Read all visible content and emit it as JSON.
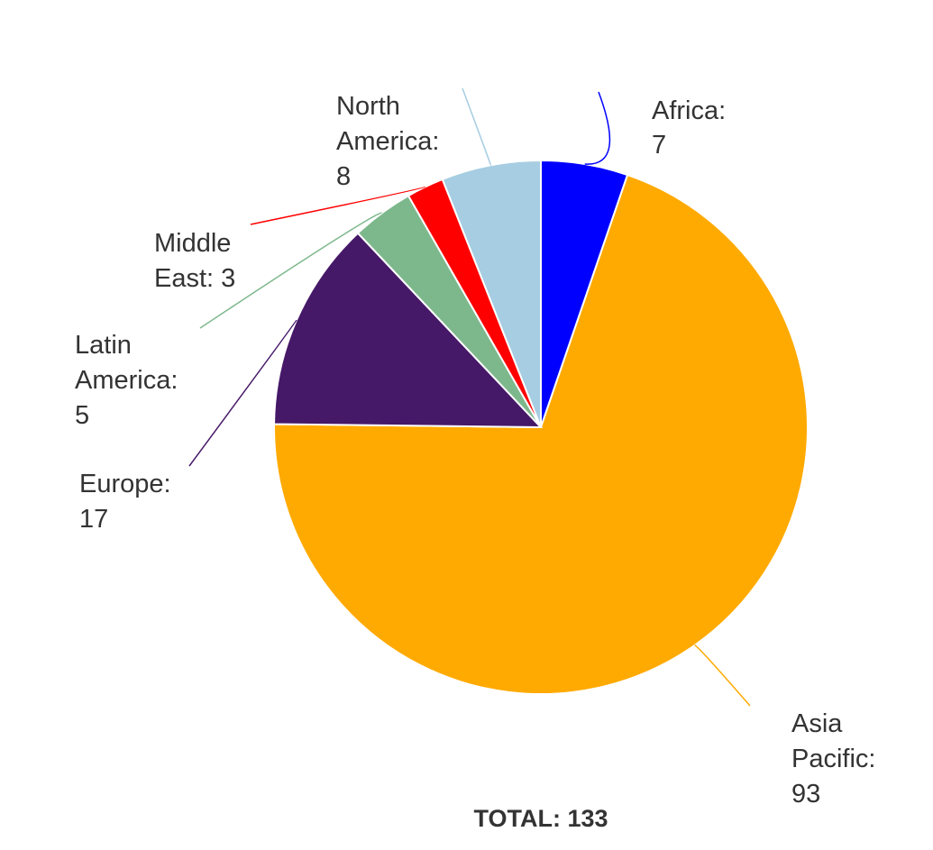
{
  "chart_data": {
    "type": "pie",
    "title": "",
    "slices": [
      {
        "label": "Africa",
        "value": 7,
        "color": "#0000FF"
      },
      {
        "label": "Asia Pacific",
        "value": 93,
        "color": "#FFAA00"
      },
      {
        "label": "Europe",
        "value": 17,
        "color": "#461868"
      },
      {
        "label": "Latin America",
        "value": 5,
        "color": "#7DB88C"
      },
      {
        "label": "Middle East",
        "value": 3,
        "color": "#FF0000"
      },
      {
        "label": "North America",
        "value": 8,
        "color": "#A6CDE2"
      }
    ],
    "total_label": "TOTAL:",
    "total_value": "133"
  }
}
